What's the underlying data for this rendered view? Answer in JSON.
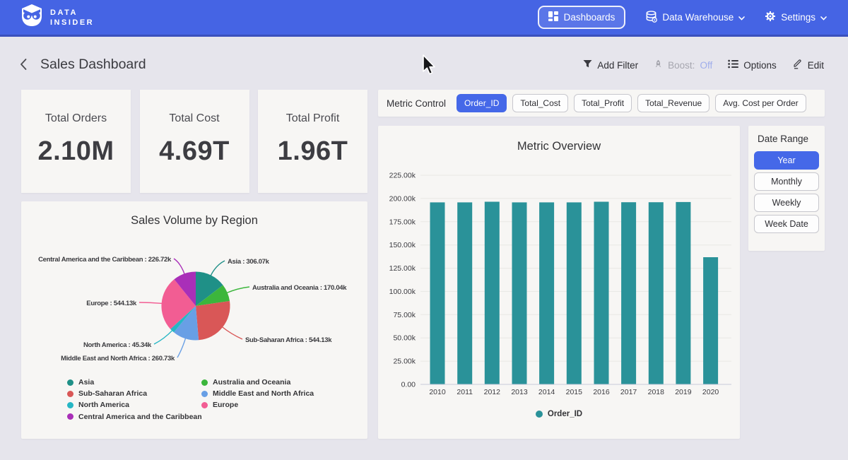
{
  "navbar": {
    "brand": {
      "line1": "DATA",
      "line2": "INSIDER"
    },
    "dashboards": "Dashboards",
    "data_warehouse": "Data Warehouse",
    "settings": "Settings"
  },
  "header": {
    "title": "Sales Dashboard",
    "add_filter": "Add Filter",
    "boost_label": "Boost:",
    "boost_value": "Off",
    "options": "Options",
    "edit": "Edit"
  },
  "kpis": [
    {
      "label": "Total Orders",
      "value": "2.10M"
    },
    {
      "label": "Total Cost",
      "value": "4.69T"
    },
    {
      "label": "Total Profit",
      "value": "1.96T"
    }
  ],
  "metric_control": {
    "label": "Metric Control",
    "selected": "Order_ID",
    "options": [
      "Order_ID",
      "Total_Cost",
      "Total_Profit",
      "Total_Revenue",
      "Avg. Cost per Order"
    ]
  },
  "date_range": {
    "label": "Date Range",
    "selected": "Year",
    "options": [
      "Year",
      "Monthly",
      "Weekly",
      "Week Date"
    ]
  },
  "chart_data": [
    {
      "type": "pie",
      "title": "Sales Volume by Region",
      "unit": "k",
      "slices": [
        {
          "name": "Asia",
          "value_k": 306.07,
          "label": "Asia : 306.07k",
          "color": "#1f9087"
        },
        {
          "name": "Australia and Oceania",
          "value_k": 170.04,
          "label": "Australia and Oceania : 170.04k",
          "color": "#3cb63c"
        },
        {
          "name": "Sub-Saharan Africa",
          "value_k": 544.13,
          "label": "Sub-Saharan Africa : 544.13k",
          "color": "#d95757"
        },
        {
          "name": "Middle East and North Africa",
          "value_k": 260.73,
          "label": "Middle East and North Africa : 260.73k",
          "color": "#689fe5"
        },
        {
          "name": "North America",
          "value_k": 45.34,
          "label": "North America : 45.34k",
          "color": "#26b6c4"
        },
        {
          "name": "Europe",
          "value_k": 544.13,
          "label": "Europe : 544.13k",
          "color": "#f25d93"
        },
        {
          "name": "Central America and the Caribbean",
          "value_k": 226.72,
          "label": "Central America and the Caribbean : 226.72k",
          "color": "#a92fb8"
        }
      ],
      "legend_columns": [
        [
          "Asia",
          "Sub-Saharan Africa",
          "North America",
          "Central America and the Caribbean"
        ],
        [
          "Australia and Oceania",
          "Middle East and North Africa",
          "Europe"
        ]
      ]
    },
    {
      "type": "bar",
      "title": "Metric Overview",
      "categories": [
        "2010",
        "2011",
        "2012",
        "2013",
        "2014",
        "2015",
        "2016",
        "2017",
        "2018",
        "2019",
        "2020"
      ],
      "series": [
        {
          "name": "Order_ID",
          "color": "#2a9299",
          "values_k": [
            195.8,
            195.8,
            196.5,
            195.8,
            195.8,
            195.8,
            196.5,
            196.0,
            196.0,
            196.2,
            136.8
          ]
        }
      ],
      "ymax_k": 225,
      "ytick_labels": [
        "0.00",
        "25.00k",
        "50.00k",
        "75.00k",
        "100.00k",
        "125.00k",
        "150.00k",
        "175.00k",
        "200.00k",
        "225.00k"
      ],
      "legend": [
        "Order_ID"
      ],
      "legend_position": "bottom"
    }
  ]
}
